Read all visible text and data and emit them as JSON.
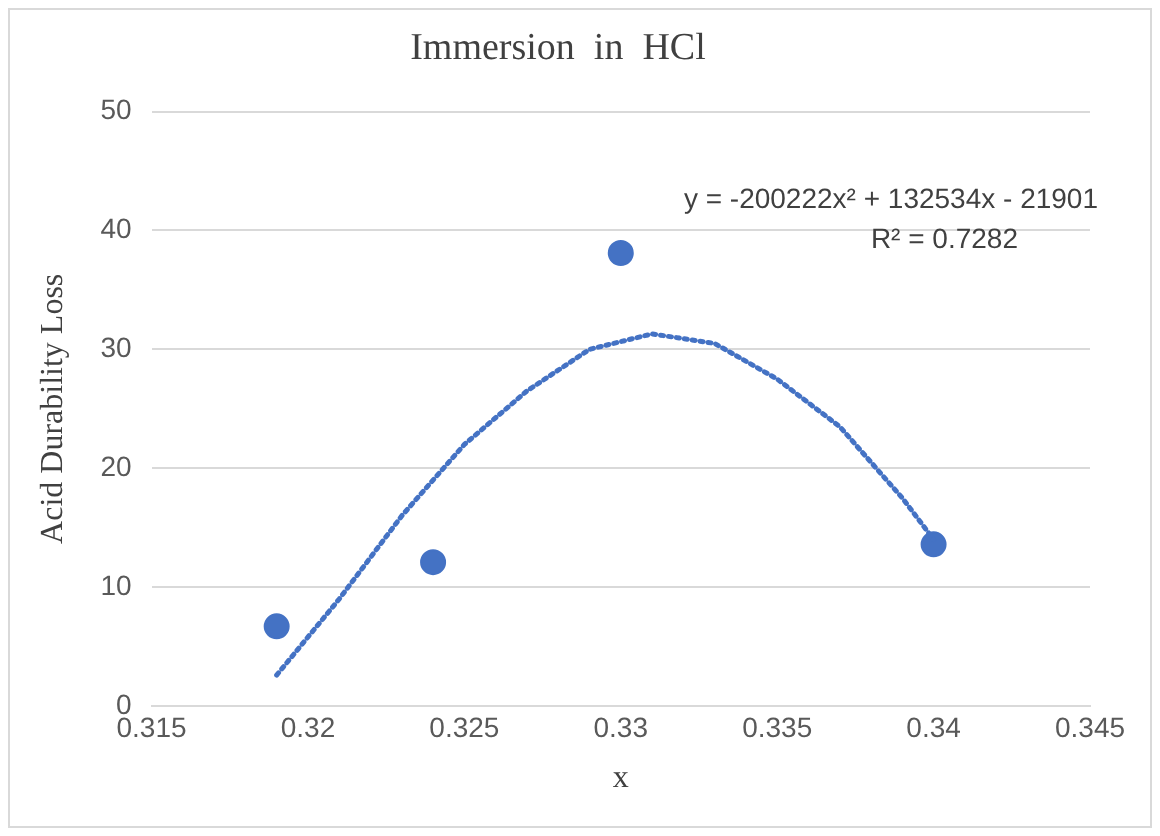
{
  "chart_data": {
    "type": "scatter",
    "title": "Immersion  in  HCl",
    "xlabel": "x",
    "ylabel": "Acid Durability Loss",
    "xlim": [
      0.315,
      0.345
    ],
    "xticks": [
      0.315,
      0.32,
      0.325,
      0.33,
      0.335,
      0.34,
      0.345
    ],
    "ylim": [
      0,
      50
    ],
    "yticks": [
      0,
      10,
      20,
      30,
      40,
      50
    ],
    "grid": "y",
    "legend": false,
    "annotations": [
      "y = -200222x² + 132534x - 21901",
      "R² = 0.7282"
    ],
    "series": [
      {
        "type": "scatter",
        "color": "#4472c4",
        "marker": "circle",
        "x": [
          0.319,
          0.324,
          0.33,
          0.34
        ],
        "values": [
          6.7,
          12.1,
          38.1,
          13.6
        ]
      },
      {
        "type": "line",
        "color": "#4472c4",
        "line_style": "dotted",
        "marker": "none",
        "x": [
          0.319,
          0.321,
          0.323,
          0.325,
          0.327,
          0.329,
          0.331,
          0.333,
          0.335,
          0.337,
          0.339,
          0.34
        ],
        "values": [
          2.6,
          9,
          16,
          22,
          26.5,
          30,
          31.3,
          30.5,
          27.5,
          23.5,
          17.5,
          14
        ]
      }
    ]
  }
}
